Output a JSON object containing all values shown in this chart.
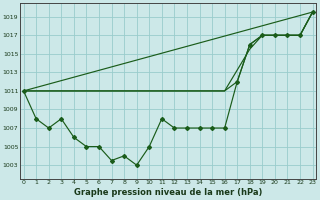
{
  "title": "Graphe pression niveau de la mer (hPa)",
  "bg_color": "#cce8e8",
  "grid_color": "#99cccc",
  "line_color": "#1a5c1a",
  "x_ticks": [
    0,
    1,
    2,
    3,
    4,
    5,
    6,
    7,
    8,
    9,
    10,
    11,
    12,
    13,
    14,
    15,
    16,
    17,
    18,
    19,
    20,
    21,
    22,
    23
  ],
  "y_ticks": [
    1003,
    1005,
    1007,
    1009,
    1011,
    1013,
    1015,
    1017,
    1019
  ],
  "ylim": [
    1001.5,
    1020.5
  ],
  "xlim": [
    -0.3,
    23.3
  ],
  "main_y": [
    1011,
    1008,
    1007,
    1008,
    1006,
    1005,
    1005,
    1003.5,
    1004,
    1003,
    1005,
    1008,
    1007,
    1007,
    1007,
    1007,
    1007,
    1012,
    1016,
    1017,
    1017,
    1017,
    1017,
    1019.5
  ],
  "trend1_x": [
    0,
    23
  ],
  "trend1_y": [
    1011,
    1019.5
  ],
  "trend2_x": [
    0,
    16,
    18,
    19,
    20,
    21,
    22,
    23
  ],
  "trend2_y": [
    1011,
    1011,
    1015.5,
    1017,
    1017,
    1017,
    1017,
    1019.5
  ],
  "trend3_x": [
    0,
    16,
    17,
    18,
    19,
    20,
    21,
    22,
    23
  ],
  "trend3_y": [
    1011,
    1011,
    1012,
    1016,
    1017,
    1017,
    1017,
    1017,
    1019.5
  ],
  "tick_fontsize": 4.5,
  "xlabel_fontsize": 6.0,
  "tick_color": "#1a3a1a",
  "marker_style": "D",
  "marker_size": 2.0,
  "linewidth": 0.9
}
